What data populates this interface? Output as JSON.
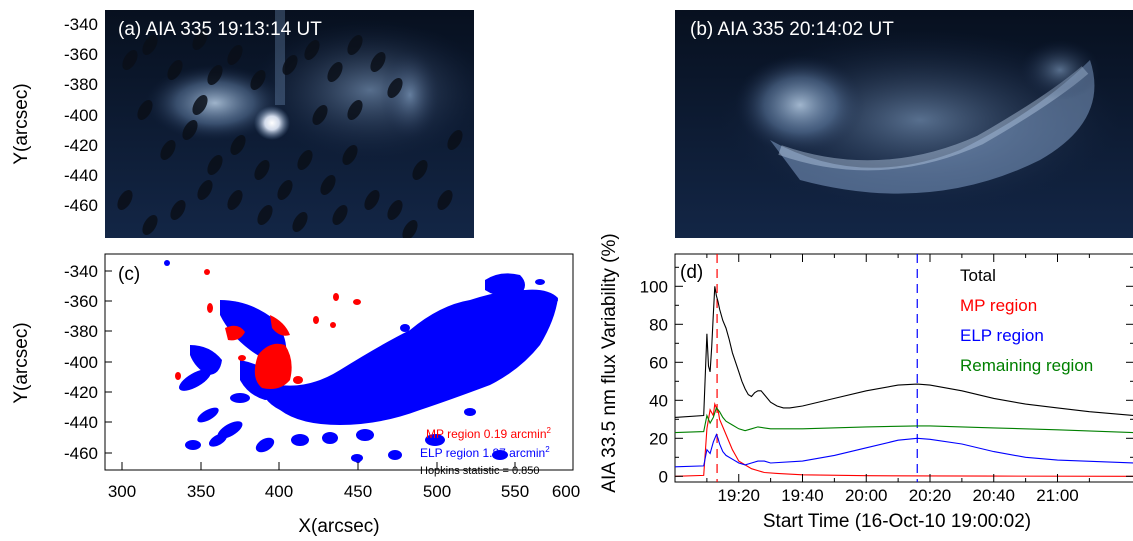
{
  "panels": {
    "a": {
      "label": "(a) AIA 335  19:13:14 UT",
      "ylabel": "Y(arcsec)",
      "yticks": [
        "-340",
        "-360",
        "-380",
        "-400",
        "-420",
        "-440",
        "-460"
      ]
    },
    "b": {
      "label": "(b) AIA 335  20:14:02 UT"
    },
    "c": {
      "label": "(c)",
      "xlabel": "X(arcsec)",
      "ylabel": "Y(arcsec)",
      "xticks": [
        "300",
        "350",
        "400",
        "450",
        "500",
        "550",
        "600"
      ],
      "yticks": [
        "-340",
        "-360",
        "-380",
        "-400",
        "-420",
        "-440",
        "-460"
      ],
      "mp_text": "MP region  0.19 arcmin",
      "elp_text": "ELP region  1.87 arcmin",
      "sup": "2",
      "hopkins_text": "Hopkins statistic = 0.850",
      "colors": {
        "mp": "#ff0000",
        "elp": "#0000ff"
      }
    }
  },
  "chart_data": {
    "type": "line",
    "panel_label": "(d)",
    "xlabel": "Start Time (16-Oct-10 19:00:02)",
    "ylabel": "AIA 33.5 nm flux Variability (%)",
    "xlim": [
      0,
      144
    ],
    "ylim": [
      -3,
      117
    ],
    "x_tick_labels": [
      "19:20",
      "19:40",
      "20:00",
      "20:20",
      "20:40",
      "21:00"
    ],
    "x_tick_minutes": [
      20,
      40,
      60,
      80,
      100,
      120
    ],
    "y_ticks": [
      0,
      20,
      40,
      60,
      80,
      100
    ],
    "vlines_minutes": [
      13.2,
      76
    ],
    "vline_colors": [
      "#ff0000",
      "#0000ff"
    ],
    "series": [
      {
        "name": "Total",
        "color": "#000000",
        "x": [
          0,
          9,
          10,
          10.5,
          11,
          11.5,
          12,
          12.5,
          13,
          13.5,
          14,
          15,
          16,
          17,
          18,
          19,
          20,
          21,
          22,
          23,
          24,
          25,
          26,
          27,
          28,
          30,
          32,
          34,
          36,
          40,
          50,
          60,
          70,
          76,
          80,
          90,
          100,
          110,
          120,
          130,
          144
        ],
        "y": [
          31,
          32,
          75,
          58,
          55,
          68,
          85,
          100,
          95,
          92,
          88,
          82,
          78,
          72,
          65,
          60,
          55,
          50,
          46,
          43,
          42,
          44,
          45,
          45,
          43,
          39,
          37,
          36,
          36,
          37,
          41,
          45,
          48,
          48.5,
          48,
          45,
          41,
          38,
          36,
          34,
          32
        ]
      },
      {
        "name": "MP region",
        "color": "#ff0000",
        "x": [
          0,
          9,
          10,
          11,
          12,
          12.5,
          13,
          13.5,
          14,
          15,
          16,
          17,
          18,
          19,
          20,
          22,
          24,
          26,
          28,
          32,
          40,
          60,
          80,
          100,
          144
        ],
        "y": [
          0,
          0.5,
          25,
          35,
          32,
          38,
          36,
          35,
          30,
          26,
          22,
          18,
          14,
          11,
          8,
          6,
          4,
          3,
          2,
          1.5,
          0.8,
          0.3,
          0.2,
          0.1,
          0
        ]
      },
      {
        "name": "ELP region",
        "color": "#0000ff",
        "x": [
          0,
          9,
          10,
          11,
          12,
          13,
          13.5,
          14,
          15,
          16,
          18,
          20,
          22,
          24,
          26,
          28,
          30,
          40,
          50,
          60,
          70,
          76,
          80,
          90,
          100,
          110,
          120,
          144
        ],
        "y": [
          5,
          5.5,
          14,
          12,
          18,
          22,
          20,
          17,
          13,
          11,
          9,
          7,
          6,
          7,
          8,
          8,
          7,
          8,
          11,
          15,
          19,
          20,
          19.5,
          17,
          13,
          10,
          8.5,
          7
        ]
      },
      {
        "name": "Remaining region",
        "color": "#008000",
        "x": [
          0,
          9,
          10,
          11,
          12,
          13,
          14,
          15,
          16,
          18,
          20,
          22,
          24,
          26,
          28,
          30,
          40,
          60,
          76,
          80,
          100,
          120,
          144
        ],
        "y": [
          23,
          23.5,
          32,
          28,
          31,
          36,
          34,
          31,
          29,
          27,
          25,
          24,
          25,
          26,
          25.5,
          25,
          25,
          26,
          26.5,
          26.5,
          25.5,
          24.5,
          23
        ]
      }
    ]
  }
}
